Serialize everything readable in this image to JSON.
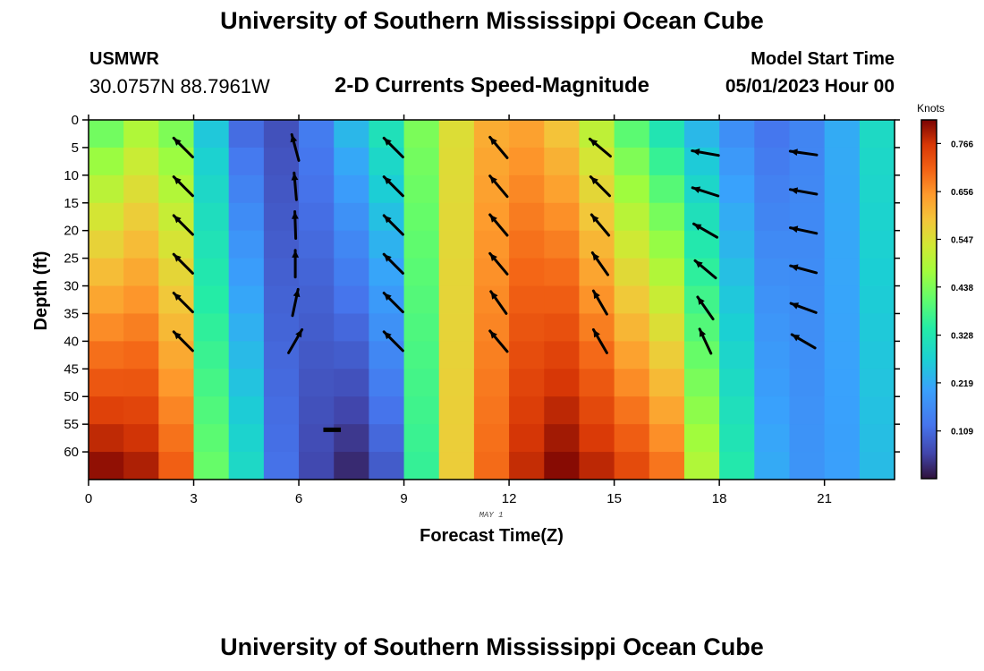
{
  "header": {
    "title": "University of Southern Mississippi Ocean Cube",
    "station_name": "USMWR",
    "station_coords": "30.0757N  88.7961W",
    "subtitle": "2-D Currents Speed-Magnitude",
    "model_start_label": "Model Start Time",
    "model_start_value": "05/01/2023 Hour 00"
  },
  "footer": {
    "title": "University of Southern Mississippi Ocean Cube"
  },
  "chart_data": {
    "type": "heatmap",
    "title": "2-D Currents Speed-Magnitude",
    "xlabel": "Forecast Time(Z)",
    "ylabel": "Depth (ft)",
    "date_label": "MAY 1",
    "xlim": [
      0,
      23
    ],
    "ylim": [
      65,
      0
    ],
    "x_ticks": [
      0,
      3,
      6,
      9,
      12,
      15,
      18,
      21
    ],
    "y_ticks": [
      0,
      5,
      10,
      15,
      20,
      25,
      30,
      35,
      40,
      45,
      50,
      55,
      60
    ],
    "colorbar": {
      "label": "Knots",
      "min": 0.0,
      "max": 0.82,
      "ticks": [
        0.109,
        0.219,
        0.328,
        0.438,
        0.547,
        0.656,
        0.766
      ]
    },
    "hours": [
      0,
      1,
      2,
      3,
      4,
      5,
      6,
      7,
      8,
      9,
      10,
      11,
      12,
      13,
      14,
      15,
      16,
      17,
      18,
      19,
      20,
      21,
      22
    ],
    "surface_speed": [
      0.4,
      0.47,
      0.42,
      0.25,
      0.1,
      0.07,
      0.14,
      0.25,
      0.33,
      0.44,
      0.55,
      0.62,
      0.63,
      0.58,
      0.49,
      0.38,
      0.3,
      0.22,
      0.16,
      0.12,
      0.15,
      0.22,
      0.3
    ],
    "bottom_speed": [
      0.82,
      0.8,
      0.72,
      0.42,
      0.3,
      0.12,
      0.06,
      0.02,
      0.08,
      0.36,
      0.58,
      0.7,
      0.78,
      0.82,
      0.79,
      0.75,
      0.7,
      0.5,
      0.34,
      0.22,
      0.18,
      0.2,
      0.24
    ],
    "vectors": [
      {
        "hour": 2.7,
        "depth": 5,
        "angle": 135
      },
      {
        "hour": 2.7,
        "depth": 12,
        "angle": 135
      },
      {
        "hour": 2.7,
        "depth": 19,
        "angle": 135
      },
      {
        "hour": 2.7,
        "depth": 26,
        "angle": 135
      },
      {
        "hour": 2.7,
        "depth": 33,
        "angle": 135
      },
      {
        "hour": 2.7,
        "depth": 40,
        "angle": 135
      },
      {
        "hour": 5.9,
        "depth": 5,
        "angle": 105
      },
      {
        "hour": 5.9,
        "depth": 12,
        "angle": 95
      },
      {
        "hour": 5.9,
        "depth": 19,
        "angle": 92
      },
      {
        "hour": 5.9,
        "depth": 26,
        "angle": 90
      },
      {
        "hour": 5.9,
        "depth": 33,
        "angle": 78
      },
      {
        "hour": 5.9,
        "depth": 40,
        "angle": 60
      },
      {
        "hour": 8.7,
        "depth": 5,
        "angle": 135
      },
      {
        "hour": 8.7,
        "depth": 12,
        "angle": 135
      },
      {
        "hour": 8.7,
        "depth": 19,
        "angle": 135
      },
      {
        "hour": 8.7,
        "depth": 26,
        "angle": 135
      },
      {
        "hour": 8.7,
        "depth": 33,
        "angle": 135
      },
      {
        "hour": 8.7,
        "depth": 40,
        "angle": 135
      },
      {
        "hour": 11.7,
        "depth": 5,
        "angle": 130
      },
      {
        "hour": 11.7,
        "depth": 12,
        "angle": 130
      },
      {
        "hour": 11.7,
        "depth": 19,
        "angle": 130
      },
      {
        "hour": 11.7,
        "depth": 26,
        "angle": 130
      },
      {
        "hour": 11.7,
        "depth": 33,
        "angle": 125
      },
      {
        "hour": 11.7,
        "depth": 40,
        "angle": 130
      },
      {
        "hour": 14.6,
        "depth": 5,
        "angle": 140
      },
      {
        "hour": 14.6,
        "depth": 12,
        "angle": 135
      },
      {
        "hour": 14.6,
        "depth": 19,
        "angle": 130
      },
      {
        "hour": 14.6,
        "depth": 26,
        "angle": 125
      },
      {
        "hour": 14.6,
        "depth": 33,
        "angle": 120
      },
      {
        "hour": 14.6,
        "depth": 40,
        "angle": 120
      },
      {
        "hour": 17.6,
        "depth": 6,
        "angle": 170
      },
      {
        "hour": 17.6,
        "depth": 13,
        "angle": 162
      },
      {
        "hour": 17.6,
        "depth": 20,
        "angle": 150
      },
      {
        "hour": 17.6,
        "depth": 27,
        "angle": 140
      },
      {
        "hour": 17.6,
        "depth": 34,
        "angle": 125
      },
      {
        "hour": 17.6,
        "depth": 40,
        "angle": 115
      },
      {
        "hour": 20.4,
        "depth": 6,
        "angle": 172
      },
      {
        "hour": 20.4,
        "depth": 13,
        "angle": 170
      },
      {
        "hour": 20.4,
        "depth": 20,
        "angle": 168
      },
      {
        "hour": 20.4,
        "depth": 27,
        "angle": 165
      },
      {
        "hour": 20.4,
        "depth": 34,
        "angle": 160
      },
      {
        "hour": 20.4,
        "depth": 40,
        "angle": 150
      }
    ]
  }
}
